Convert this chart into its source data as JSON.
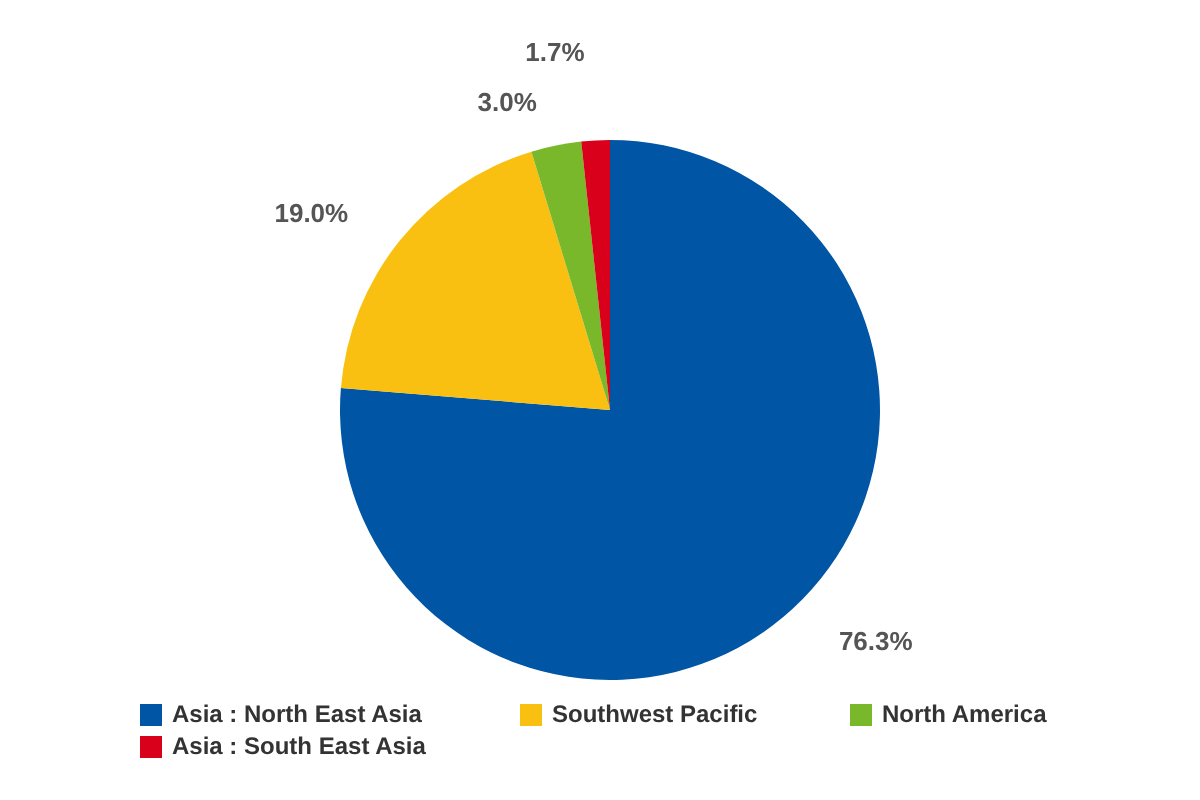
{
  "chart_data": {
    "type": "pie",
    "categories": [
      "Asia : North East Asia",
      "Southwest Pacific",
      "North America",
      "Asia : South East Asia"
    ],
    "values": [
      76.3,
      19.0,
      3.0,
      1.7
    ],
    "colors": [
      "#0055a5",
      "#f9c012",
      "#78b82a",
      "#d9001b"
    ],
    "value_labels": [
      "76.3%",
      "19.0%",
      "3.0%",
      "1.7%"
    ],
    "legend": "bottom"
  }
}
